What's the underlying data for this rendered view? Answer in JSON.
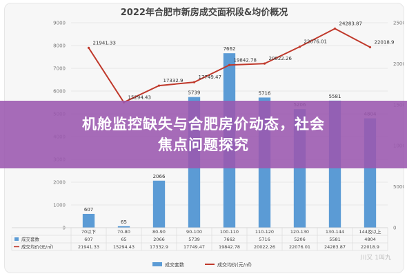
{
  "chart_data": {
    "type": "bar+line",
    "title": "2022年合肥市新房成交面积段&均价概况",
    "categories": [
      "70以下",
      "70-80",
      "80-90",
      "90-100",
      "100-110",
      "110-120",
      "120-130",
      "130-144",
      "144及以上"
    ],
    "series": [
      {
        "name": "成交套数",
        "type": "bar",
        "axis": "left",
        "color": "#5b9bd5",
        "values": [
          607,
          65,
          2066,
          5739,
          7662,
          5716,
          5206,
          5581,
          4804
        ],
        "table_values": [
          "607",
          "65",
          "2066",
          "5739",
          "7662",
          "5716",
          "5206",
          "5581",
          "4804"
        ]
      },
      {
        "name": "成交均价(元/㎡)",
        "type": "line",
        "axis": "right",
        "color": "#c0392b",
        "values": [
          21941.33,
          15294.43,
          17332.9,
          17749.47,
          19842.78,
          20022.26,
          22076.01,
          24283.87,
          22018.9
        ],
        "table_values": [
          "21941.33",
          "15294.43",
          "17332.9",
          "17749.47",
          "19842.78",
          "20022.26",
          "22076.01",
          "24283.87",
          "22018.9"
        ]
      }
    ],
    "y_left": {
      "min": 0,
      "max": 9000,
      "ticks": [
        0,
        1000,
        2000,
        3000,
        4000,
        5000,
        6000,
        7000,
        8000,
        9000
      ]
    },
    "y_right": {
      "min": 0,
      "max": 25000,
      "ticks": [
        0,
        5000,
        10000,
        15000,
        20000,
        25000
      ]
    },
    "legend_position": "bottom",
    "grid": true
  },
  "banner": {
    "line1": "机舱监控缺失与合肥房价动态，社会",
    "line2": "焦点问题探究"
  },
  "watermark": "川又 1叫九"
}
